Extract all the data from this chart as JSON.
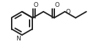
{
  "bg_color": "#ffffff",
  "line_color": "#222222",
  "line_width": 1.4,
  "figsize": [
    1.44,
    0.7
  ],
  "dpi": 100,
  "xlim": [
    0,
    144
  ],
  "ylim": [
    0,
    70
  ]
}
